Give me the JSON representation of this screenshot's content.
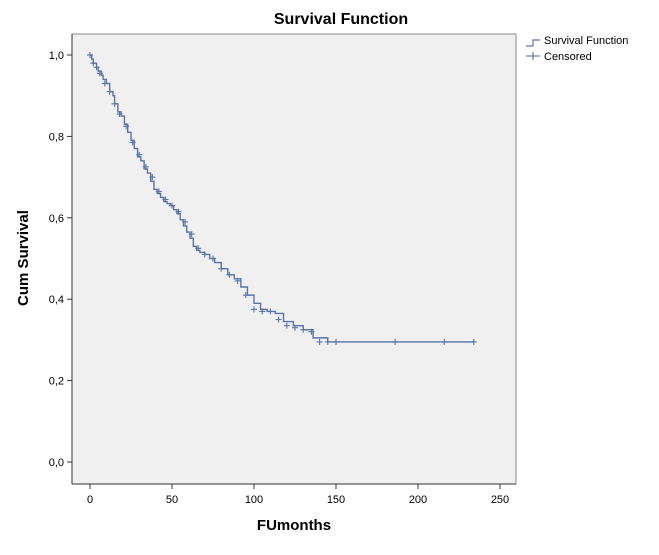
{
  "chart_data": {
    "type": "line",
    "title": "Survival Function",
    "xlabel": "FUmonths",
    "ylabel": "Cum Survival",
    "xlim": [
      0,
      250
    ],
    "ylim": [
      0.0,
      1.0
    ],
    "x_ticks": [
      "0",
      "50",
      "100",
      "150",
      "200",
      "250"
    ],
    "y_ticks": [
      "0,0",
      "0,2",
      "0,4",
      "0,6",
      "0,8",
      "1,0"
    ],
    "legend": {
      "placement": "top-right-outside",
      "entries": [
        "Survival Function",
        "Censored"
      ]
    },
    "grid": false,
    "plot_background": "#f0f0f0",
    "line_color": "#5a74a8",
    "series": [
      {
        "name": "Survival Function",
        "x": [
          0,
          1,
          2,
          4,
          5,
          7,
          8,
          10,
          12,
          14,
          15,
          17,
          19,
          21,
          23,
          25,
          27,
          29,
          31,
          33,
          35,
          37,
          39,
          41,
          43,
          45,
          47,
          49,
          51,
          53,
          55,
          57,
          59,
          61,
          63,
          65,
          67,
          70,
          73,
          76,
          80,
          84,
          88,
          92,
          96,
          100,
          104,
          108,
          113,
          118,
          124,
          130,
          136,
          145,
          155,
          170,
          185,
          200,
          215,
          234
        ],
        "y": [
          1.0,
          0.99,
          0.98,
          0.97,
          0.96,
          0.95,
          0.94,
          0.93,
          0.91,
          0.9,
          0.88,
          0.86,
          0.85,
          0.83,
          0.81,
          0.79,
          0.77,
          0.75,
          0.74,
          0.72,
          0.71,
          0.69,
          0.67,
          0.66,
          0.65,
          0.64,
          0.635,
          0.63,
          0.62,
          0.61,
          0.595,
          0.58,
          0.565,
          0.55,
          0.53,
          0.52,
          0.515,
          0.51,
          0.5,
          0.49,
          0.475,
          0.46,
          0.45,
          0.43,
          0.41,
          0.39,
          0.375,
          0.37,
          0.365,
          0.345,
          0.335,
          0.325,
          0.305,
          0.295,
          0.295,
          0.295,
          0.295,
          0.295,
          0.295,
          0.295
        ]
      },
      {
        "name": "Censored",
        "x": [
          0,
          2,
          4,
          6,
          9,
          12,
          15,
          18,
          22,
          26,
          30,
          34,
          38,
          42,
          46,
          50,
          54,
          58,
          62,
          66,
          70,
          75,
          80,
          85,
          90,
          95,
          100,
          105,
          110,
          115,
          120,
          125,
          130,
          135,
          140,
          145,
          150,
          186,
          216,
          234
        ],
        "y": [
          1.0,
          0.98,
          0.97,
          0.955,
          0.93,
          0.91,
          0.88,
          0.855,
          0.825,
          0.785,
          0.755,
          0.725,
          0.7,
          0.665,
          0.645,
          0.63,
          0.615,
          0.59,
          0.56,
          0.525,
          0.51,
          0.5,
          0.475,
          0.46,
          0.445,
          0.41,
          0.375,
          0.37,
          0.37,
          0.35,
          0.335,
          0.33,
          0.325,
          0.32,
          0.295,
          0.295,
          0.295,
          0.295,
          0.295,
          0.295
        ]
      }
    ]
  }
}
